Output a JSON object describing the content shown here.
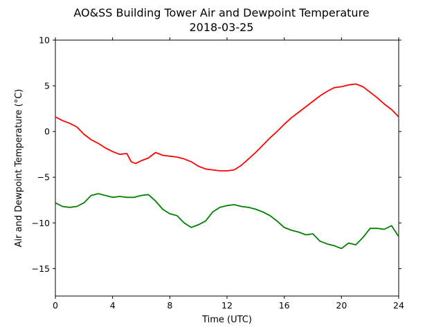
{
  "chart_data": {
    "type": "line",
    "title": "AO&SS Building Tower Air and Dewpoint Temperature",
    "subtitle": "2018-03-25",
    "xlabel": "Time (UTC)",
    "ylabel": "Air and Dewpoint Temperature (°C)",
    "xlim": [
      0,
      24
    ],
    "ylim": [
      -18,
      10
    ],
    "xticks": [
      0,
      4,
      8,
      12,
      16,
      20,
      24
    ],
    "yticks": [
      -15,
      -10,
      -5,
      0,
      5,
      10
    ],
    "grid": false,
    "legend": "none",
    "series": [
      {
        "color": "#ff0000",
        "x": [
          0,
          0.5,
          1,
          1.5,
          2,
          2.5,
          3,
          3.5,
          4,
          4.5,
          5,
          5.3,
          5.6,
          6,
          6.5,
          7,
          7.5,
          8,
          8.5,
          9,
          9.5,
          10,
          10.5,
          11,
          11.5,
          12,
          12.5,
          13,
          13.5,
          14,
          14.5,
          15,
          15.5,
          16,
          16.5,
          17,
          17.5,
          18,
          18.5,
          19,
          19.5,
          20,
          20.5,
          21,
          21.5,
          22,
          22.5,
          23,
          23.5,
          24
        ],
        "y": [
          1.6,
          1.2,
          0.9,
          0.5,
          -0.3,
          -0.9,
          -1.3,
          -1.8,
          -2.2,
          -2.5,
          -2.4,
          -3.3,
          -3.5,
          -3.2,
          -2.9,
          -2.3,
          -2.6,
          -2.7,
          -2.8,
          -3.0,
          -3.3,
          -3.8,
          -4.1,
          -4.2,
          -4.3,
          -4.3,
          -4.2,
          -3.7,
          -3.0,
          -2.3,
          -1.5,
          -0.7,
          0.0,
          0.8,
          1.5,
          2.1,
          2.7,
          3.3,
          3.9,
          4.4,
          4.8,
          4.9,
          5.1,
          5.2,
          4.9,
          4.3,
          3.7,
          3.0,
          2.4,
          1.6
        ]
      },
      {
        "color": "#008000",
        "x": [
          0,
          0.5,
          1,
          1.5,
          2,
          2.5,
          3,
          3.5,
          4,
          4.5,
          5,
          5.5,
          6,
          6.5,
          7,
          7.5,
          8,
          8.5,
          9,
          9.5,
          10,
          10.5,
          11,
          11.5,
          12,
          12.5,
          13,
          13.5,
          14,
          14.5,
          15,
          15.5,
          16,
          16.5,
          17,
          17.5,
          18,
          18.5,
          19,
          19.5,
          20,
          20.5,
          21,
          21.5,
          22,
          22.5,
          23,
          23.5,
          24
        ],
        "y": [
          -7.8,
          -8.2,
          -8.3,
          -8.2,
          -7.8,
          -7.0,
          -6.8,
          -7.0,
          -7.2,
          -7.1,
          -7.2,
          -7.2,
          -7.0,
          -6.9,
          -7.6,
          -8.5,
          -9.0,
          -9.2,
          -10.0,
          -10.5,
          -10.2,
          -9.8,
          -8.8,
          -8.3,
          -8.1,
          -8.0,
          -8.2,
          -8.3,
          -8.5,
          -8.8,
          -9.2,
          -9.8,
          -10.5,
          -10.8,
          -11.0,
          -11.3,
          -11.2,
          -12.0,
          -12.3,
          -12.5,
          -12.8,
          -12.2,
          -12.4,
          -11.6,
          -10.6,
          -10.6,
          -10.7,
          -10.3,
          -11.5
        ]
      }
    ]
  }
}
